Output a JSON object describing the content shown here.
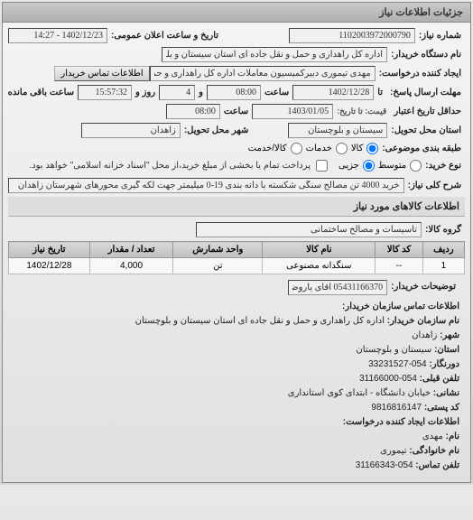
{
  "panel": {
    "title": "جزئیات اطلاعات نیاز"
  },
  "header": {
    "req_no_label": "شماره نیاز:",
    "req_no": "1102003972000790",
    "announce_label": "تاریخ و ساعت اعلان عمومی:",
    "announce": "1402/12/23 - 14:27",
    "buyer_label": "نام دستگاه خریدار:",
    "buyer": "اداره کل راهداری و حمل و نقل جاده ای استان سیستان و بلوچستان",
    "requester_label": "ایجاد کننده درخواست:",
    "requester": "مهدی تیموری دبیرکمیسیون معاملات اداره کل راهداری و حمل و نقل جاده ای اس",
    "contact_btn": "اطلاعات تماس خریدار",
    "deadline_label": "مهلت ارسال پاسخ:",
    "deadline_until": "تا",
    "deadline_date": "1402/12/28",
    "deadline_hour_label": "ساعت",
    "deadline_hour": "08:00",
    "and": "و",
    "days_remain": "4",
    "day_and": "روز و",
    "time_remain": "15:57:32",
    "time_remain_label": "ساعت باقی مانده",
    "validity_label": "حداقل تاریخ اعتبار",
    "validity_sub": "قیمت: تا تاریخ:",
    "validity_date": "1403/01/05",
    "validity_hour_label": "ساعت",
    "validity_hour": "08:00",
    "province_label": "استان محل تحویل:",
    "province": "سیستان و بلوچستان",
    "city_label": "شهر محل تحویل:",
    "city": "زاهدان",
    "subject_type_label": "طبقه بندی موضوعی:",
    "subject_kala": "کالا",
    "subject_khadamat": "خدمات",
    "subject_kala_khadamat": "کالا/خدمت",
    "buy_type_label": "نوع خرید:",
    "buy_avg": "متوسط",
    "buy_partial": "جزیی",
    "payment_note": "پرداخت تمام یا بخشی از مبلغ خرید،از محل \"اسناد خزانه اسلامی\" خواهد بود.",
    "desc_label": "شرح کلی نیاز:",
    "desc": "خرید 4000 تن مصالح سنگی شکسته با دانه بندی 19-0 میلیمتر جهت لکه گیری محورهای شهرستان زاهدان"
  },
  "goods": {
    "title": "اطلاعات کالاهای مورد نیاز",
    "group_label": "گروه کالا:",
    "group": "تاسیسات و مصالح ساختمانی",
    "columns": [
      "ردیف",
      "کد کالا",
      "نام کالا",
      "واحد شمارش",
      "تعداد / مقدار",
      "تاریخ نیاز"
    ],
    "rows": [
      [
        "1",
        "--",
        "سنگدانه مصنوعی",
        "تن",
        "4,000",
        "1402/12/28"
      ]
    ]
  },
  "contact": {
    "title": "اطلاعات تماس سازمان خریدار:",
    "buyer_tel_label": "توضیحات خریدار:",
    "buyer_tel": "05431166370 آقای یاروض",
    "org_label": "نام سازمان خریدار:",
    "org": "اداره کل راهداری و حمل و نقل جاده ای استان سیستان و بلوچستان",
    "city_label": "شهر:",
    "city": "زاهدان",
    "province_label": "استان:",
    "province": "سیستان و بلوچستان",
    "fax_label": "دورنگار:",
    "fax": "054-33231527",
    "fax_label2": "تلفن قبلی:",
    "fax2": "054-31166000",
    "address_label": "نشانی:",
    "address": "خیابان دانشگاه - ابتدای کوی استانداری",
    "postal_label": "کد پستی:",
    "postal": "9816816147",
    "creator_title": "اطلاعات ایجاد کننده درخواست:",
    "name_label": "نام:",
    "family_label": "نام خانوادگی:",
    "name": "مهدی",
    "family": "تیموری",
    "tel_label": "تلفن تماس:",
    "tel": "054-31166343"
  }
}
